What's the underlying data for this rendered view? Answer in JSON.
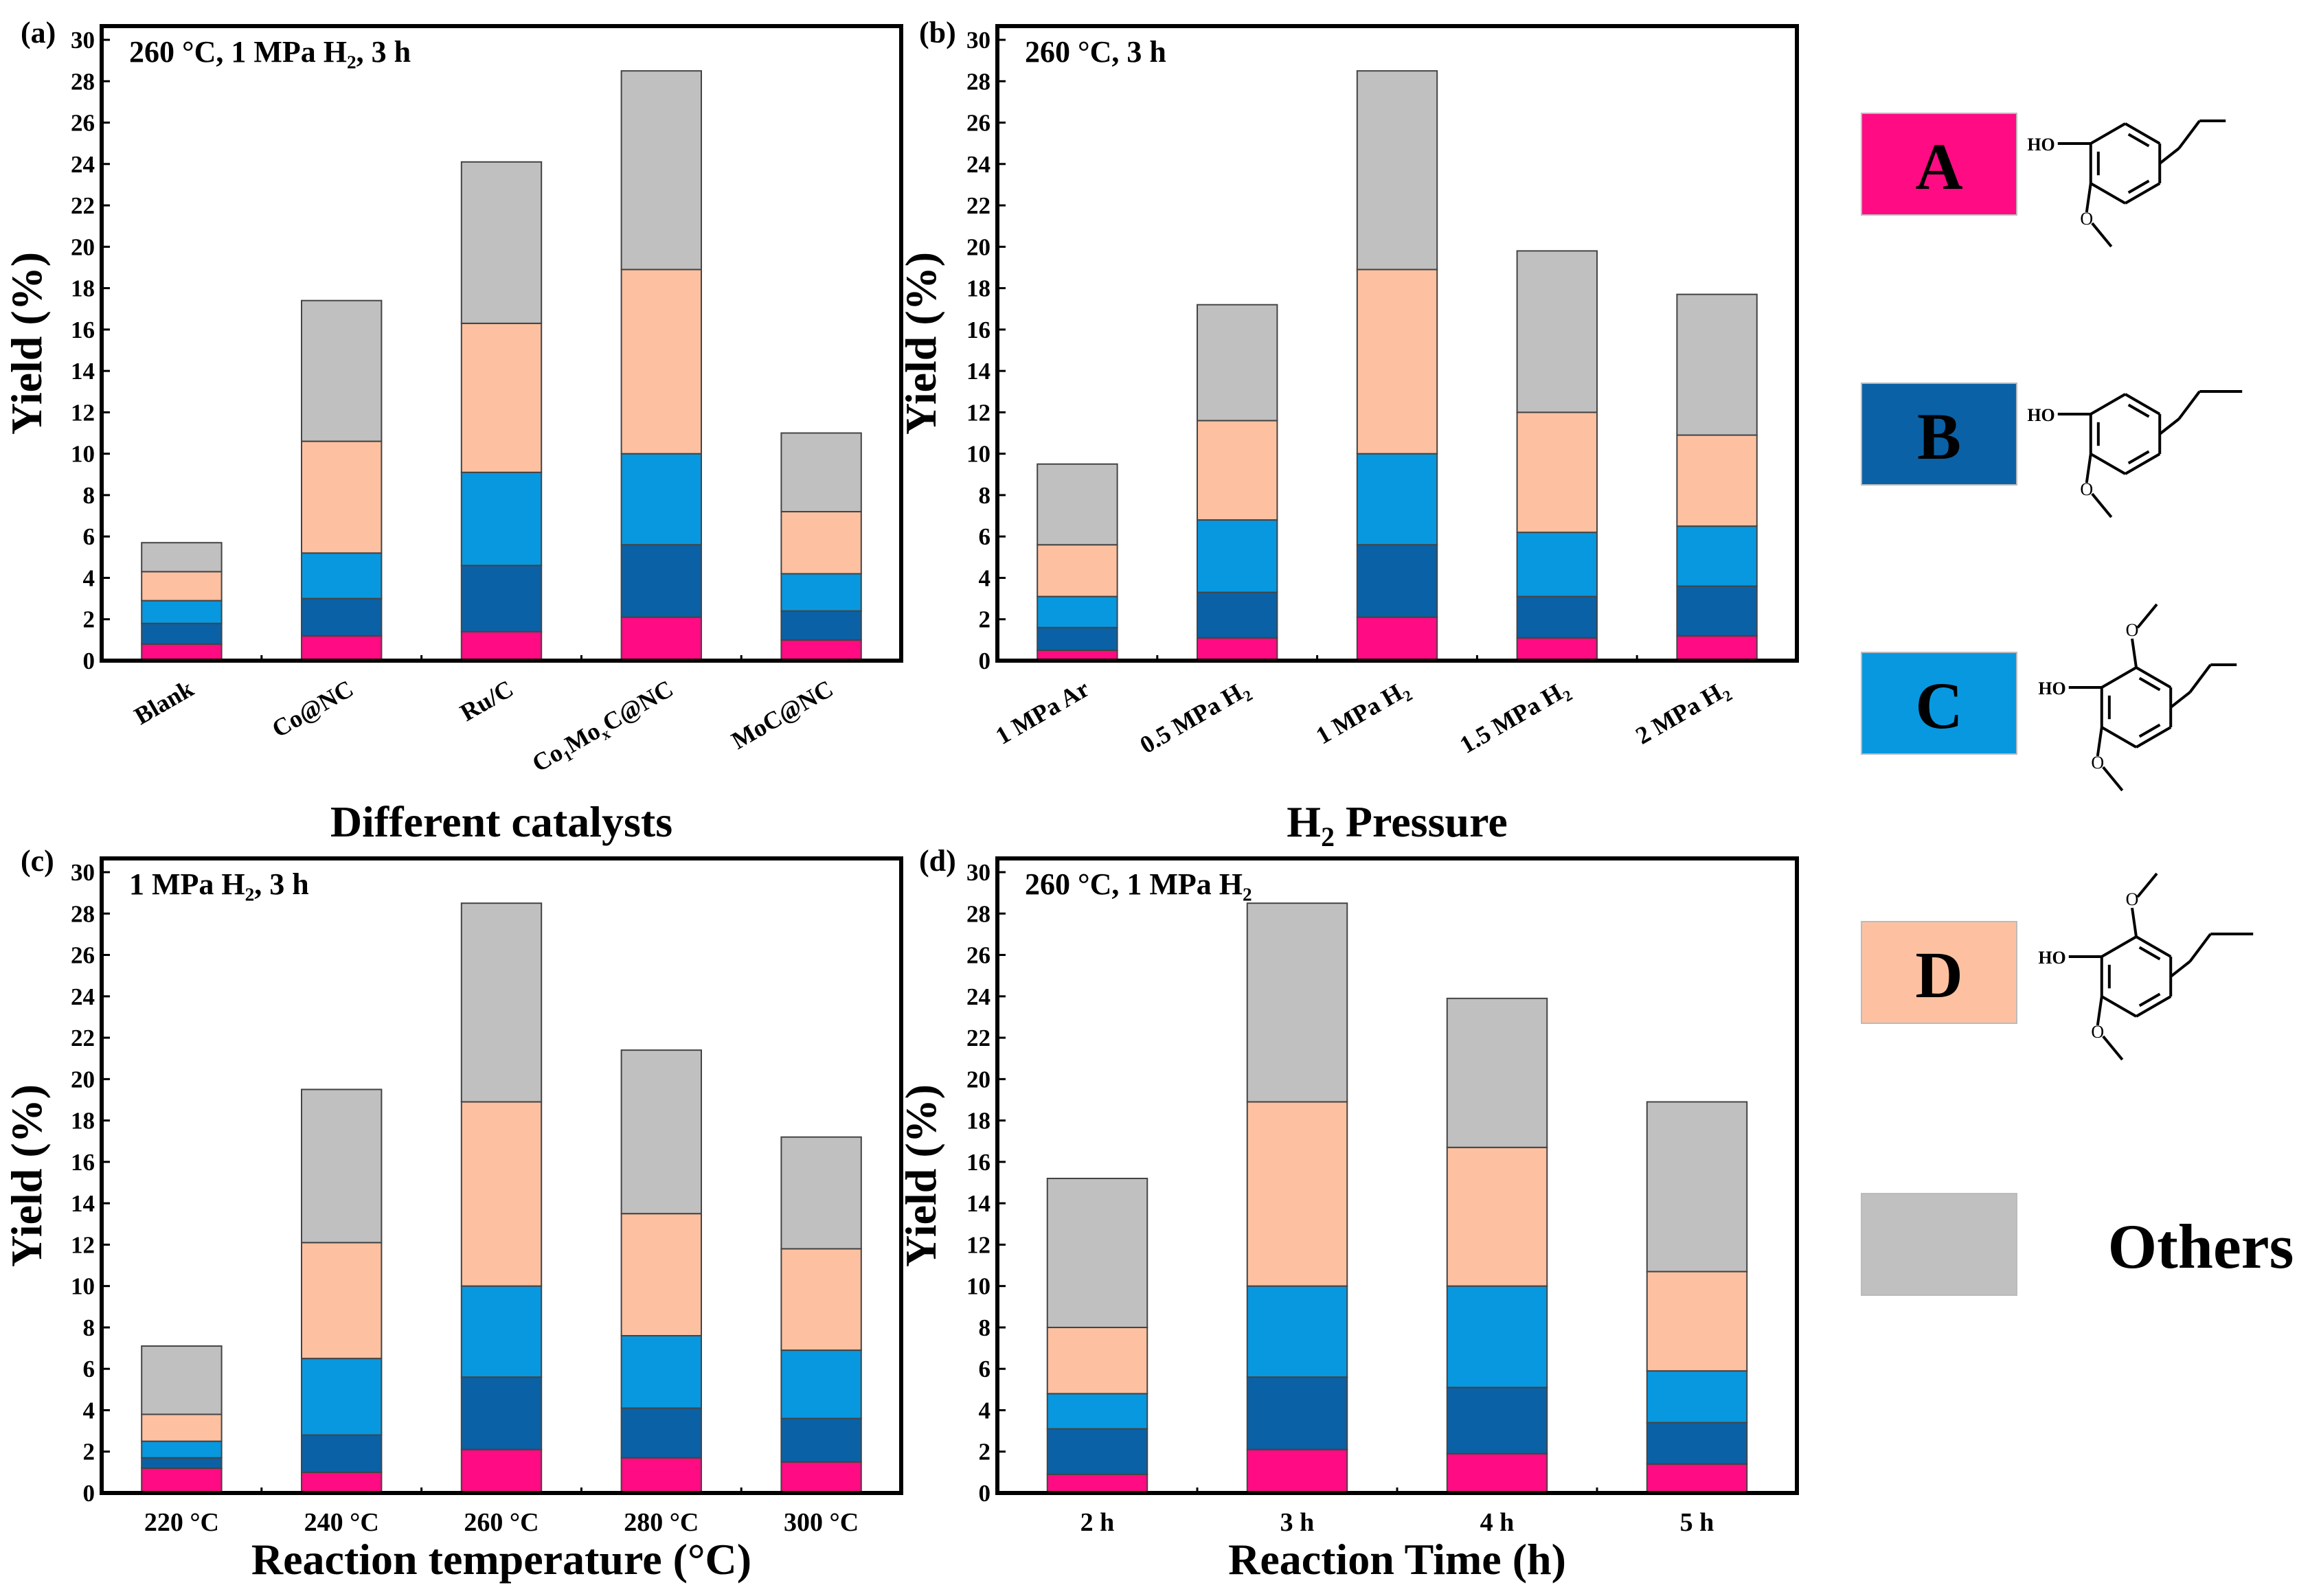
{
  "colors": {
    "A": "#ff0b84",
    "B": "#0b61a5",
    "C": "#0898e0",
    "D": "#fdc1a1",
    "Others": "#c0c0c0"
  },
  "legend": [
    {
      "key": "A",
      "label": "A"
    },
    {
      "key": "B",
      "label": "B"
    },
    {
      "key": "C",
      "label": "C"
    },
    {
      "key": "D",
      "label": "D"
    },
    {
      "key": "Others",
      "label": "Others"
    }
  ],
  "structures": [
    {
      "key": "A",
      "ho": "HO",
      "chain": "ethyl",
      "sub": 1
    },
    {
      "key": "B",
      "ho": "HO",
      "chain": "propyl",
      "sub": 1
    },
    {
      "key": "C",
      "ho": "HO",
      "chain": "ethyl",
      "sub": 2
    },
    {
      "key": "D",
      "ho": "HO",
      "chain": "propyl",
      "sub": 2
    }
  ],
  "chart_data": [
    {
      "panel": "(a)",
      "type": "bar",
      "stacked": true,
      "condition": "260 °C, 1 MPa H<sub>2</sub>, 3 h",
      "xlabel": "Different catalysts",
      "ylabel": "Yield (%)",
      "ylim": [
        0,
        30
      ],
      "yticks": [
        0,
        2,
        4,
        6,
        8,
        10,
        12,
        14,
        16,
        18,
        20,
        22,
        24,
        26,
        28,
        30
      ],
      "tick_rotation": -30,
      "categories": [
        "Blank",
        "Co@NC",
        "Ru/C",
        "Co<sub>1</sub>Mo<sub>x</sub>C@NC",
        "MoC@NC"
      ],
      "series": [
        {
          "name": "A",
          "values": [
            0.8,
            1.2,
            1.4,
            2.1,
            1.0
          ]
        },
        {
          "name": "B",
          "values": [
            1.0,
            1.8,
            3.2,
            3.5,
            1.4
          ]
        },
        {
          "name": "C",
          "values": [
            1.1,
            2.2,
            4.5,
            4.4,
            1.8
          ]
        },
        {
          "name": "D",
          "values": [
            1.4,
            5.4,
            7.2,
            8.9,
            3.0
          ]
        },
        {
          "name": "Others",
          "values": [
            1.4,
            6.8,
            7.8,
            9.6,
            3.8
          ]
        }
      ]
    },
    {
      "panel": "(b)",
      "type": "bar",
      "stacked": true,
      "condition": "260 °C, 3 h",
      "xlabel": "H<sub>2</sub> Pressure",
      "ylabel": "Yield (%)",
      "ylim": [
        0,
        30
      ],
      "yticks": [
        0,
        2,
        4,
        6,
        8,
        10,
        12,
        14,
        16,
        18,
        20,
        22,
        24,
        26,
        28,
        30
      ],
      "tick_rotation": -30,
      "categories": [
        "1 MPa Ar",
        "0.5 MPa H<sub>2</sub>",
        "1 MPa H<sub>2</sub>",
        "1.5 MPa H<sub>2</sub>",
        "2 MPa H<sub>2</sub>"
      ],
      "series": [
        {
          "name": "A",
          "values": [
            0.5,
            1.1,
            2.1,
            1.1,
            1.2
          ]
        },
        {
          "name": "B",
          "values": [
            1.1,
            2.2,
            3.5,
            2.0,
            2.4
          ]
        },
        {
          "name": "C",
          "values": [
            1.5,
            3.5,
            4.4,
            3.1,
            2.9
          ]
        },
        {
          "name": "D",
          "values": [
            2.5,
            4.8,
            8.9,
            5.8,
            4.4
          ]
        },
        {
          "name": "Others",
          "values": [
            3.9,
            5.6,
            9.6,
            7.8,
            6.8
          ]
        }
      ]
    },
    {
      "panel": "(c)",
      "type": "bar",
      "stacked": true,
      "condition": "1 MPa H<sub>2</sub>, 3 h",
      "xlabel": "Reaction temperature (°C)",
      "ylabel": "Yield (%)",
      "ylim": [
        0,
        30
      ],
      "yticks": [
        0,
        2,
        4,
        6,
        8,
        10,
        12,
        14,
        16,
        18,
        20,
        22,
        24,
        26,
        28,
        30
      ],
      "tick_rotation": 0,
      "categories": [
        "220 °C",
        "240 °C",
        "260 °C",
        "280 °C",
        "300 °C"
      ],
      "series": [
        {
          "name": "A",
          "values": [
            1.2,
            1.0,
            2.1,
            1.7,
            1.5
          ]
        },
        {
          "name": "B",
          "values": [
            0.5,
            1.8,
            3.5,
            2.4,
            2.1
          ]
        },
        {
          "name": "C",
          "values": [
            0.8,
            3.7,
            4.4,
            3.5,
            3.3
          ]
        },
        {
          "name": "D",
          "values": [
            1.3,
            5.6,
            8.9,
            5.9,
            4.9
          ]
        },
        {
          "name": "Others",
          "values": [
            3.3,
            7.4,
            9.6,
            7.9,
            5.4
          ]
        }
      ]
    },
    {
      "panel": "(d)",
      "type": "bar",
      "stacked": true,
      "condition": "260 °C, 1 MPa H<sub>2</sub>",
      "xlabel": "Reaction Time (h)",
      "ylabel": "Yield (%)",
      "ylim": [
        0,
        30
      ],
      "yticks": [
        0,
        2,
        4,
        6,
        8,
        10,
        12,
        14,
        16,
        18,
        20,
        22,
        24,
        26,
        28,
        30
      ],
      "tick_rotation": 0,
      "categories": [
        "2 h",
        "3 h",
        "4 h",
        "5 h"
      ],
      "series": [
        {
          "name": "A",
          "values": [
            0.9,
            2.1,
            1.9,
            1.4
          ]
        },
        {
          "name": "B",
          "values": [
            2.2,
            3.5,
            3.2,
            2.0
          ]
        },
        {
          "name": "C",
          "values": [
            1.7,
            4.4,
            4.9,
            2.5
          ]
        },
        {
          "name": "D",
          "values": [
            3.2,
            8.9,
            6.7,
            4.8
          ]
        },
        {
          "name": "Others",
          "values": [
            7.2,
            9.6,
            7.2,
            8.2
          ]
        }
      ]
    }
  ]
}
